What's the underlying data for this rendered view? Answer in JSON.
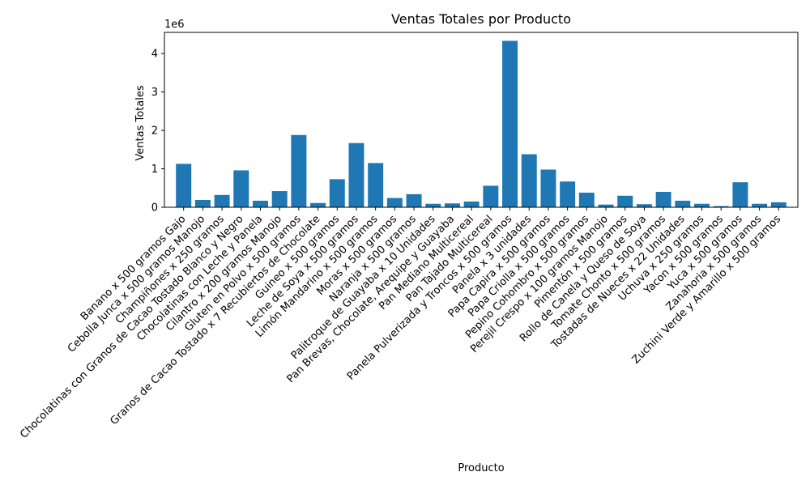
{
  "chart_data": {
    "type": "bar",
    "title": "Ventas Totales por Producto",
    "xlabel": "Producto",
    "ylabel": "Ventas Totales",
    "y_offset_label": "1e6",
    "ylim": [
      0,
      4.55
    ],
    "y_ticks": [
      0,
      1,
      2,
      3,
      4
    ],
    "y_tick_labels": [
      "0",
      "1",
      "2",
      "3",
      "4"
    ],
    "grid": false,
    "bar_color": "#1f77b4",
    "categories": [
      "Banano x 500 gramos Gajo",
      "Cebolla Junca x 500 gramos Manojo",
      "Champiñones x 250 gramos",
      "Chocolatinas con Granos de Cacao Tostado Blanco y Negro",
      "Chocolatinas con Leche y Panela",
      "Cilantro x 200 gramos Manojo",
      "Gluten en Polvo x 500 gramos",
      "Granos de Cacao Tostado x 7 Recubiertos de Chocolate",
      "Guineo x 500 gramos",
      "Leche de Soya x 500 gramos",
      "Limón Mandarino x 500 gramos",
      "Moras x 500 gramos",
      "Naranja x 500 gramos",
      "Palitroque de Guayaba x 10 Unidades",
      "Pan Brevas, Chocolate, Arequipe y Guayaba",
      "Pan Mediano Multicereal",
      "Pan Tajado Multicereal",
      "Panela Pulverizada y Troncos x 500 gramos",
      "Panela x 3 unidades",
      "Papa Capira x 500 gramos",
      "Papa Criolla x 500 gramos",
      "Pepino Cohombro x 500 gramos",
      "Perejil Crespo x 100 gramos Manojo",
      "Pimentón x 500 gramos",
      "Rollo de Canela y Queso de Soya",
      "Tomate Chonto x 500 gramos",
      "Tostadas de Nueces x 22 Unidades",
      "Uchuva x 250 gramos",
      "Yacon x 500 gramos",
      "Yuca x 500 gramos",
      "Zanahoria x 500 gramos",
      "Zuchini Verde y Amarillo x 500 gramos"
    ],
    "values": [
      1.13,
      0.19,
      0.32,
      0.96,
      0.17,
      0.42,
      1.88,
      0.11,
      0.73,
      1.67,
      1.15,
      0.24,
      0.34,
      0.09,
      0.1,
      0.15,
      0.56,
      4.33,
      1.38,
      0.98,
      0.67,
      0.38,
      0.07,
      0.3,
      0.08,
      0.4,
      0.17,
      0.09,
      0.03,
      0.65,
      0.09,
      0.13
    ]
  }
}
